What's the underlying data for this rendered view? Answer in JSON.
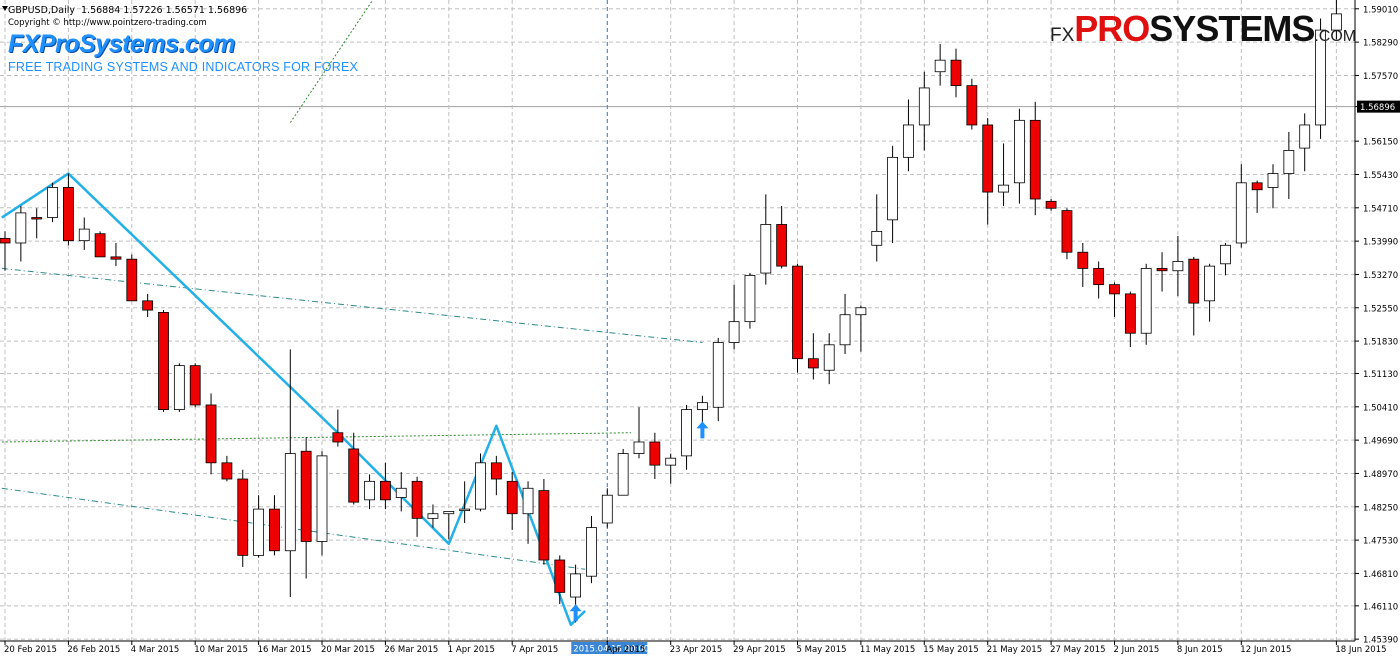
{
  "header": {
    "symbol_line": "GBPUSD,Daily  1.56884 1.57226 1.56571 1.56896",
    "copyright": "Copyright © http://www.pointzero-trading.com",
    "brand_left": "FXProSystems.com",
    "tagline": "FREE TRADING SYSTEMS AND INDICATORS FOR FOREX",
    "brand_right": {
      "fx": "FX",
      "pro": "PRO",
      "systems": "SYSTEMS",
      "com": ".COM"
    }
  },
  "colors": {
    "bull_body": "#ffffff",
    "bear_body": "#ee0000",
    "candle_outline": "#000000",
    "zigzag": "#22b0e8",
    "arrow": "#1e90ff",
    "grid": "#c0c0c0",
    "channel": "#2e8b8b",
    "dotted_green": "#2e8b2e"
  },
  "chart_data": {
    "type": "candlestick",
    "symbol": "GBPUSD",
    "timeframe": "Daily",
    "ylim": [
      1.4535,
      1.592
    ],
    "y_ticks": [
      "1.59010",
      "1.58290",
      "1.57570",
      "1.56896",
      "1.56150",
      "1.55430",
      "1.54710",
      "1.53990",
      "1.53270",
      "1.52550",
      "1.51830",
      "1.51130",
      "1.50410",
      "1.49690",
      "1.48970",
      "1.48250",
      "1.47530",
      "1.46810",
      "1.46110",
      "1.45390"
    ],
    "current_price": "1.56896",
    "x_ticks": [
      "20 Feb 2015",
      "26 Feb 2015",
      "4 Mar 2015",
      "10 Mar 2015",
      "16 Mar 2015",
      "20 Mar 2015",
      "26 Mar 2015",
      "1 Apr 2015",
      "7 Apr 2015",
      "2015.04.15 00:00",
      "Apr 2015",
      "23 Apr 2015",
      "29 Apr 2015",
      "5 May 2015",
      "11 May 2015",
      "15 May 2015",
      "21 May 2015",
      "27 May 2015",
      "2 Jun 2015",
      "8 Jun 2015",
      "12 Jun 2015",
      "18 Jun 2015"
    ],
    "crosshair_label": "2015.04.15 00:00",
    "candles": [
      {
        "o": 1.5405,
        "h": 1.542,
        "l": 1.5335,
        "c": 1.5395
      },
      {
        "o": 1.5395,
        "h": 1.5475,
        "l": 1.5355,
        "c": 1.546
      },
      {
        "o": 1.545,
        "h": 1.547,
        "l": 1.5405,
        "c": 1.5447
      },
      {
        "o": 1.545,
        "h": 1.5525,
        "l": 1.544,
        "c": 1.5515
      },
      {
        "o": 1.5515,
        "h": 1.5545,
        "l": 1.539,
        "c": 1.54
      },
      {
        "o": 1.54,
        "h": 1.545,
        "l": 1.538,
        "c": 1.5425
      },
      {
        "o": 1.5415,
        "h": 1.542,
        "l": 1.5365,
        "c": 1.5365
      },
      {
        "o": 1.5365,
        "h": 1.5395,
        "l": 1.5345,
        "c": 1.536
      },
      {
        "o": 1.536,
        "h": 1.537,
        "l": 1.527,
        "c": 1.527
      },
      {
        "o": 1.527,
        "h": 1.5285,
        "l": 1.5235,
        "c": 1.525
      },
      {
        "o": 1.5245,
        "h": 1.525,
        "l": 1.503,
        "c": 1.5035
      },
      {
        "o": 1.5035,
        "h": 1.5135,
        "l": 1.503,
        "c": 1.513
      },
      {
        "o": 1.513,
        "h": 1.5135,
        "l": 1.504,
        "c": 1.5045
      },
      {
        "o": 1.5045,
        "h": 1.507,
        "l": 1.4895,
        "c": 1.492
      },
      {
        "o": 1.492,
        "h": 1.4935,
        "l": 1.488,
        "c": 1.4885
      },
      {
        "o": 1.4885,
        "h": 1.4905,
        "l": 1.4695,
        "c": 1.472
      },
      {
        "o": 1.472,
        "h": 1.485,
        "l": 1.4715,
        "c": 1.482
      },
      {
        "o": 1.482,
        "h": 1.485,
        "l": 1.472,
        "c": 1.473
      },
      {
        "o": 1.473,
        "h": 1.5165,
        "l": 1.463,
        "c": 1.494
      },
      {
        "o": 1.4945,
        "h": 1.4975,
        "l": 1.467,
        "c": 1.475
      },
      {
        "o": 1.475,
        "h": 1.4945,
        "l": 1.472,
        "c": 1.4935
      },
      {
        "o": 1.4985,
        "h": 1.5035,
        "l": 1.4955,
        "c": 1.4965
      },
      {
        "o": 1.495,
        "h": 1.4985,
        "l": 1.483,
        "c": 1.4835
      },
      {
        "o": 1.484,
        "h": 1.4895,
        "l": 1.482,
        "c": 1.488
      },
      {
        "o": 1.488,
        "h": 1.492,
        "l": 1.482,
        "c": 1.484
      },
      {
        "o": 1.4845,
        "h": 1.49,
        "l": 1.4815,
        "c": 1.4865
      },
      {
        "o": 1.488,
        "h": 1.489,
        "l": 1.476,
        "c": 1.48
      },
      {
        "o": 1.48,
        "h": 1.483,
        "l": 1.478,
        "c": 1.481
      },
      {
        "o": 1.481,
        "h": 1.4815,
        "l": 1.4755,
        "c": 1.4815
      },
      {
        "o": 1.482,
        "h": 1.488,
        "l": 1.479,
        "c": 1.482
      },
      {
        "o": 1.482,
        "h": 1.494,
        "l": 1.4815,
        "c": 1.492
      },
      {
        "o": 1.492,
        "h": 1.4935,
        "l": 1.485,
        "c": 1.4885
      },
      {
        "o": 1.488,
        "h": 1.49,
        "l": 1.4775,
        "c": 1.481
      },
      {
        "o": 1.481,
        "h": 1.488,
        "l": 1.4745,
        "c": 1.4865
      },
      {
        "o": 1.486,
        "h": 1.4885,
        "l": 1.47,
        "c": 1.471
      },
      {
        "o": 1.471,
        "h": 1.472,
        "l": 1.4615,
        "c": 1.464
      },
      {
        "o": 1.463,
        "h": 1.47,
        "l": 1.4575,
        "c": 1.468
      },
      {
        "o": 1.4675,
        "h": 1.4805,
        "l": 1.466,
        "c": 1.478
      },
      {
        "o": 1.479,
        "h": 1.4865,
        "l": 1.478,
        "c": 1.485
      },
      {
        "o": 1.485,
        "h": 1.495,
        "l": 1.485,
        "c": 1.494
      },
      {
        "o": 1.494,
        "h": 1.504,
        "l": 1.493,
        "c": 1.4965
      },
      {
        "o": 1.4965,
        "h": 1.4985,
        "l": 1.4885,
        "c": 1.4915
      },
      {
        "o": 1.4915,
        "h": 1.494,
        "l": 1.4875,
        "c": 1.493
      },
      {
        "o": 1.4935,
        "h": 1.5045,
        "l": 1.4905,
        "c": 1.5035
      },
      {
        "o": 1.5035,
        "h": 1.5065,
        "l": 1.5005,
        "c": 1.505
      },
      {
        "o": 1.504,
        "h": 1.519,
        "l": 1.501,
        "c": 1.518
      },
      {
        "o": 1.518,
        "h": 1.5305,
        "l": 1.5165,
        "c": 1.5225
      },
      {
        "o": 1.5225,
        "h": 1.533,
        "l": 1.521,
        "c": 1.5325
      },
      {
        "o": 1.533,
        "h": 1.55,
        "l": 1.5305,
        "c": 1.5435
      },
      {
        "o": 1.5435,
        "h": 1.5475,
        "l": 1.534,
        "c": 1.5345
      },
      {
        "o": 1.5345,
        "h": 1.535,
        "l": 1.5115,
        "c": 1.5145
      },
      {
        "o": 1.5145,
        "h": 1.52,
        "l": 1.51,
        "c": 1.5125
      },
      {
        "o": 1.512,
        "h": 1.52,
        "l": 1.509,
        "c": 1.5175
      },
      {
        "o": 1.5175,
        "h": 1.5285,
        "l": 1.5155,
        "c": 1.524
      },
      {
        "o": 1.524,
        "h": 1.526,
        "l": 1.516,
        "c": 1.5255
      },
      {
        "o": 1.539,
        "h": 1.55,
        "l": 1.5355,
        "c": 1.542
      },
      {
        "o": 1.5445,
        "h": 1.5605,
        "l": 1.5395,
        "c": 1.558
      },
      {
        "o": 1.558,
        "h": 1.5705,
        "l": 1.555,
        "c": 1.565
      },
      {
        "o": 1.565,
        "h": 1.5765,
        "l": 1.5595,
        "c": 1.573
      },
      {
        "o": 1.5765,
        "h": 1.5825,
        "l": 1.5735,
        "c": 1.579
      },
      {
        "o": 1.579,
        "h": 1.5815,
        "l": 1.571,
        "c": 1.5735
      },
      {
        "o": 1.5735,
        "h": 1.575,
        "l": 1.564,
        "c": 1.565
      },
      {
        "o": 1.565,
        "h": 1.5665,
        "l": 1.5435,
        "c": 1.5505
      },
      {
        "o": 1.5505,
        "h": 1.561,
        "l": 1.5475,
        "c": 1.552
      },
      {
        "o": 1.5525,
        "h": 1.5685,
        "l": 1.548,
        "c": 1.566
      },
      {
        "o": 1.566,
        "h": 1.57,
        "l": 1.5455,
        "c": 1.549
      },
      {
        "o": 1.5485,
        "h": 1.549,
        "l": 1.5465,
        "c": 1.547
      },
      {
        "o": 1.5465,
        "h": 1.547,
        "l": 1.536,
        "c": 1.5375
      },
      {
        "o": 1.5375,
        "h": 1.5395,
        "l": 1.53,
        "c": 1.534
      },
      {
        "o": 1.534,
        "h": 1.5355,
        "l": 1.5275,
        "c": 1.5305
      },
      {
        "o": 1.5305,
        "h": 1.531,
        "l": 1.5235,
        "c": 1.5285
      },
      {
        "o": 1.5285,
        "h": 1.529,
        "l": 1.517,
        "c": 1.52
      },
      {
        "o": 1.52,
        "h": 1.535,
        "l": 1.5175,
        "c": 1.534
      },
      {
        "o": 1.534,
        "h": 1.5375,
        "l": 1.529,
        "c": 1.5335
      },
      {
        "o": 1.5335,
        "h": 1.541,
        "l": 1.528,
        "c": 1.5355
      },
      {
        "o": 1.536,
        "h": 1.5365,
        "l": 1.5195,
        "c": 1.5265
      },
      {
        "o": 1.527,
        "h": 1.535,
        "l": 1.5225,
        "c": 1.5345
      },
      {
        "o": 1.535,
        "h": 1.5395,
        "l": 1.5325,
        "c": 1.539
      },
      {
        "o": 1.5395,
        "h": 1.5565,
        "l": 1.5385,
        "c": 1.5525
      },
      {
        "o": 1.5525,
        "h": 1.553,
        "l": 1.546,
        "c": 1.551
      },
      {
        "o": 1.5515,
        "h": 1.5565,
        "l": 1.547,
        "c": 1.5545
      },
      {
        "o": 1.5545,
        "h": 1.5635,
        "l": 1.549,
        "c": 1.5595
      },
      {
        "o": 1.56,
        "h": 1.5675,
        "l": 1.555,
        "c": 1.565
      },
      {
        "o": 1.565,
        "h": 1.588,
        "l": 1.562,
        "c": 1.5855
      },
      {
        "o": 1.5855,
        "h": 1.592,
        "l": 1.5835,
        "c": 1.589
      }
    ],
    "arrows": [
      {
        "index": 36,
        "price": 1.4595
      },
      {
        "index": 44,
        "price": 1.499
      }
    ],
    "zigzag": [
      {
        "index": -0.2,
        "price": 1.545
      },
      {
        "index": 4,
        "price": 1.5545
      },
      {
        "index": 21,
        "price": 1.4985
      },
      {
        "index": 28,
        "price": 1.4745
      },
      {
        "index": 31,
        "price": 1.5
      },
      {
        "index": 35.7,
        "price": 1.457
      },
      {
        "index": 36.6,
        "price": 1.46
      }
    ],
    "dotted_lines": [
      {
        "from": {
          "index": -0.2,
          "price": 1.4965
        },
        "to": {
          "index": 39.5,
          "price": 1.4985
        }
      },
      {
        "from": {
          "index": 18,
          "price": 1.5655
        },
        "to": {
          "index": 23.2,
          "price": 1.592
        }
      }
    ],
    "channel_lines": [
      {
        "from": {
          "index": -0.2,
          "price": 1.534
        },
        "to": {
          "index": 44,
          "price": 1.518
        }
      },
      {
        "from": {
          "index": -0.2,
          "price": 1.4865
        },
        "to": {
          "index": 36.6,
          "price": 1.469
        }
      }
    ]
  }
}
